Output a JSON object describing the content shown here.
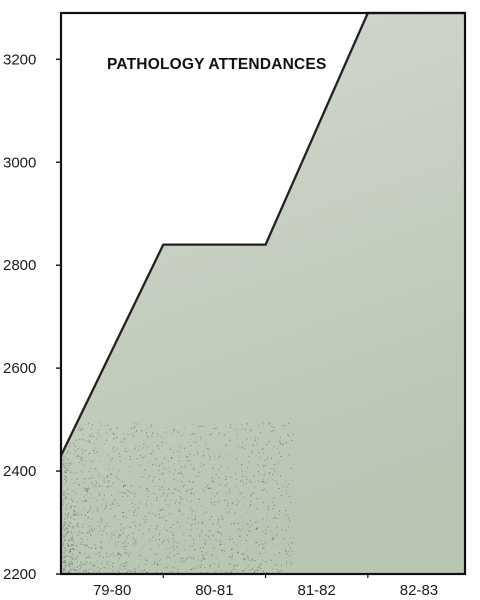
{
  "chart_data": {
    "type": "area",
    "title": "PATHOLOGY ATTENDANCES",
    "categories": [
      "79-80",
      "80-81",
      "81-82",
      "82-83"
    ],
    "x": [
      1979.5,
      1980.5,
      1981.5,
      1982.5
    ],
    "values": [
      2430,
      2840,
      2840,
      3290
    ],
    "series_points": [
      {
        "x": 1979,
        "y": 2430
      },
      {
        "x": 1980,
        "y": 2840
      },
      {
        "x": 1981,
        "y": 2840
      },
      {
        "x": 1982,
        "y": 3290
      }
    ],
    "xlim": [
      1979,
      1982.95
    ],
    "ylim": [
      2200,
      3290
    ],
    "yticks": [
      2200,
      2400,
      2600,
      2800,
      3000,
      3200
    ],
    "ytick_labels": [
      "2200",
      "2400",
      "2600",
      "2800",
      "3000",
      "3200"
    ],
    "xlabel": "",
    "ylabel": "",
    "grid": false,
    "legend": "none",
    "colors": {
      "fill_top": "#d3d7cf",
      "fill_bottom": "#b8c6b2",
      "stipple": "#555555",
      "line": "#222222",
      "frame": "#111111",
      "text": "#1c1c1c"
    }
  }
}
